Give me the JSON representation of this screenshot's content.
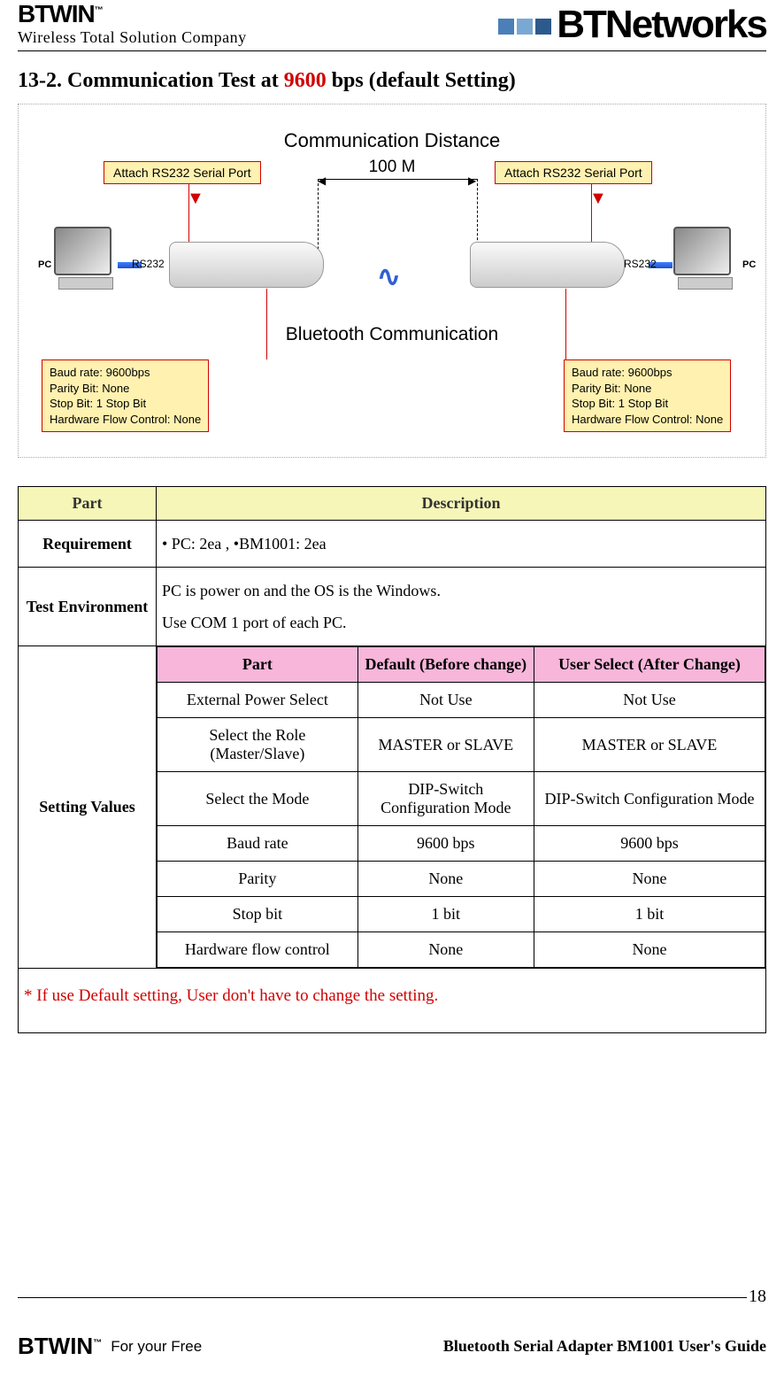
{
  "header": {
    "logo": "BTWIN",
    "logo_tm": "™",
    "tagline": "Wireless Total Solution Company",
    "company": "BTNetworks",
    "sq_colors": [
      "#4a7fb8",
      "#7aa8d4",
      "#2c5a8c"
    ]
  },
  "title": {
    "prefix": "13-2. Communication Test at ",
    "bps": "9600",
    "suffix": " bps (default Setting)"
  },
  "diagram": {
    "comm_distance": "Communication Distance",
    "distance_value": "100 M",
    "attach_left": "Attach RS232 Serial Port",
    "attach_right": "Attach RS232 Serial Port",
    "pc": "PC",
    "rs232": "RS232",
    "bt_comm": "Bluetooth Communication",
    "baud_box": {
      "l1": "Baud rate: 9600bps",
      "l2": "Parity Bit: None",
      "l3": "Stop Bit: 1 Stop Bit",
      "l4": "Hardware Flow Control: None"
    },
    "colors": {
      "callout_bg": "#fff2b0",
      "callout_border": "#d00000",
      "arrow": "#3060d0"
    }
  },
  "table": {
    "header_bg": "#f6f6b8",
    "inner_header_bg": "#f7b6da",
    "part_label": "Part",
    "desc_label": "Description",
    "rows": {
      "requirement": {
        "label": "Requirement",
        "value": "• PC: 2ea    ,              •BM1001: 2ea"
      },
      "test_env": {
        "label": "Test Environment",
        "l1": "PC is power on and the OS is the Windows.",
        "l2": "Use COM 1 port of each PC."
      },
      "setting": {
        "label": "Setting Values"
      }
    },
    "inner": {
      "h1": "Part",
      "h2": "Default (Before change)",
      "h3": "User Select (After Change)",
      "r": [
        {
          "p": "External Power Select",
          "d": "Not Use",
          "u": "Not Use"
        },
        {
          "p": "Select the Role (Master/Slave)",
          "d": "MASTER or SLAVE",
          "u": "MASTER or SLAVE"
        },
        {
          "p": "Select the Mode",
          "d": "DIP-Switch Configuration Mode",
          "u": "DIP-Switch Configuration Mode"
        },
        {
          "p": "Baud rate",
          "d": "9600 bps",
          "u": "9600 bps"
        },
        {
          "p": "Parity",
          "d": "None",
          "u": "None"
        },
        {
          "p": "Stop bit",
          "d": "1 bit",
          "u": "1 bit"
        },
        {
          "p": "Hardware flow control",
          "d": "None",
          "u": "None"
        }
      ]
    },
    "note": "* If use Default setting, User don't have to change the setting."
  },
  "footer": {
    "page": "18",
    "logo": "BTWIN",
    "free": "For your Free",
    "guide": "Bluetooth Serial Adapter BM1001 User's Guide"
  }
}
